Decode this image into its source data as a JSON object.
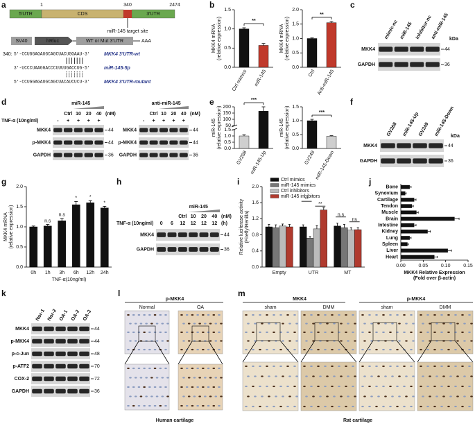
{
  "chart_data": [
    {
      "type": "bar",
      "panel": "b",
      "y_label": [
        "MKK4 mRNA",
        "(relative expression)"
      ],
      "categories": [
        "Ctrl mimics",
        "miR-145"
      ],
      "values": [
        1.0,
        0.57
      ],
      "errors": [
        0.03,
        0.05
      ],
      "colors": [
        "#111111",
        "#c0392b"
      ],
      "ylim": [
        0,
        1.5
      ],
      "yticks": [
        {
          "value": 0,
          "label": "0.0"
        },
        {
          "value": 0.5,
          "label": "0.5"
        },
        {
          "value": 1,
          "label": "1.0"
        },
        {
          "value": 1.5,
          "label": "1.5"
        }
      ],
      "significance": "**"
    },
    {
      "type": "bar",
      "y_label": [
        "MKK4 mRNA",
        "(relative expression)"
      ],
      "categories": [
        "Ctrl",
        "Anti-miR-145"
      ],
      "values": [
        1.0,
        1.55
      ],
      "errors": [
        0.02,
        0.04
      ],
      "colors": [
        "#111111",
        "#c0392b"
      ],
      "ylim": [
        0,
        2
      ],
      "yticks": [
        {
          "value": 0,
          "label": "0.0"
        },
        {
          "value": 0.5,
          "label": "0.5"
        },
        {
          "value": 1,
          "label": "1.0"
        },
        {
          "value": 1.5,
          "label": "1.5"
        },
        {
          "value": 2,
          "label": "2.0"
        }
      ],
      "significance": "**"
    },
    {
      "type": "bar",
      "panel": "e",
      "y_label": [
        "miR-145",
        "(relative expression)"
      ],
      "categories": [
        "GV268",
        "miR-145-Up"
      ],
      "values": [
        1.0,
        165
      ],
      "errors": [
        0.1,
        35
      ],
      "colors": [
        "#cfcfcf",
        "#111111"
      ],
      "ylim": [
        0,
        200
      ],
      "ybreak": [
        1.5,
        50
      ],
      "yticks": [
        {
          "value": 0,
          "label": "0.0"
        },
        {
          "value": 0.5,
          "label": "0.5"
        },
        {
          "value": 1,
          "label": "1.0"
        },
        {
          "value": 1.5,
          "label": "1.5"
        },
        50,
        100,
        150,
        200
      ],
      "significance": "***"
    },
    {
      "type": "bar",
      "y_label": [
        "miR-145",
        "(relative expression)"
      ],
      "categories": [
        "GV249",
        "miR-145-Down"
      ],
      "values": [
        1.0,
        0.44
      ],
      "errors": [
        0.05,
        0.02
      ],
      "colors": [
        "#111111",
        "#cfcfcf"
      ],
      "ylim": [
        0,
        1.5
      ],
      "yticks": [
        {
          "value": 0,
          "label": "0.0"
        },
        {
          "value": 0.5,
          "label": "0.5"
        },
        {
          "value": 1,
          "label": "1.0"
        },
        {
          "value": 1.5,
          "label": "1.5"
        }
      ],
      "significance": "***"
    },
    {
      "type": "bar",
      "panel": "g",
      "y_label": [
        "MKK4 mRNA",
        "(relative expression)"
      ],
      "x_label": "TNF-α(10ng/ml)",
      "categories": [
        "0h",
        "1h",
        "3h",
        "6h",
        "12h",
        "24h"
      ],
      "values": [
        1.0,
        1.02,
        1.15,
        1.55,
        1.6,
        1.47
      ],
      "errors": [
        0.02,
        0.04,
        0.06,
        0.08,
        0.05,
        0.04
      ],
      "color": "#111111",
      "annotations": [
        null,
        "n.s",
        "n.s",
        "*",
        "*",
        "*"
      ],
      "ylim": [
        0,
        2
      ],
      "yticks": [
        {
          "value": 0,
          "label": "0.0"
        },
        {
          "value": 0.5,
          "label": "0.5"
        },
        {
          "value": 1,
          "label": "1.0"
        },
        {
          "value": 1.5,
          "label": "1.5"
        },
        {
          "value": 2,
          "label": "2.0"
        }
      ]
    },
    {
      "type": "bar",
      "panel": "i",
      "y_label": [
        "Relative luciferase activity",
        "(Firefly/Renilla)"
      ],
      "categories": [
        "Empty",
        "UTR",
        "MT"
      ],
      "series": [
        {
          "name": "Ctrl mimics",
          "color": "#111111",
          "values": [
            1.0,
            1.0,
            1.02
          ],
          "errors": [
            0.06,
            0.05,
            0.07
          ]
        },
        {
          "name": "miR-145 mimics",
          "color": "#777777",
          "values": [
            0.98,
            0.72,
            0.98
          ],
          "errors": [
            0.07,
            0.04,
            0.08
          ]
        },
        {
          "name": "Ctrl inhibitors",
          "color": "#bbbbbb",
          "values": [
            1.02,
            0.95,
            0.92
          ],
          "errors": [
            0.05,
            0.08,
            0.06
          ]
        },
        {
          "name": "miR-145 inhibitors",
          "color": "#b03a2e",
          "values": [
            1.0,
            1.42,
            0.93
          ],
          "errors": [
            0.06,
            0.06,
            0.05
          ]
        }
      ],
      "annotations": [
        null,
        [
          "**",
          "**"
        ],
        [
          "n.s",
          "ns"
        ]
      ],
      "legend": "top",
      "ylim": [
        0,
        2
      ],
      "yticks": [
        {
          "value": 0,
          "label": "0.0"
        },
        0.4,
        0.8,
        1.2,
        1.6,
        {
          "value": 2,
          "label": "2.0"
        }
      ]
    },
    {
      "type": "barh",
      "panel": "j",
      "x_label": [
        "MKK4 Relative Expression",
        "(Fold over β-actin)"
      ],
      "categories": [
        "Bone",
        "Synovium",
        "Cartilage",
        "Tendon",
        "Muscle",
        "Brain",
        "Intestine",
        "Kidney",
        "Lung",
        "Spleen",
        "Liver",
        "Heart"
      ],
      "values": [
        0.02,
        0.01,
        0.03,
        0.025,
        0.035,
        0.12,
        0.03,
        0.06,
        0.02,
        0.015,
        0.105,
        0.075
      ],
      "errors": [
        0.003,
        0.002,
        0.004,
        0.003,
        0.004,
        0.01,
        0.004,
        0.006,
        0.003,
        0.002,
        0.008,
        0.006
      ],
      "color": "#111111",
      "xlim": [
        0,
        0.15
      ],
      "xticks": [
        {
          "value": 0,
          "label": "0.00"
        },
        0.05,
        {
          "value": 0.1,
          "label": "0.10"
        },
        0.15
      ]
    }
  ],
  "figure": {
    "a": {
      "label": "a",
      "gene": [
        "5'UTR",
        "CDS",
        "3'UTR"
      ],
      "positions": [
        "1",
        "340",
        "2474"
      ],
      "site": "miR-145 target site",
      "construct": [
        "SV40",
        "hRluc",
        "WT or Mut 3'UTR",
        "AAA"
      ],
      "alignment": [
        {
          "prefix": "340:",
          "seq": "5'-CCUGGAGAUGCAGCUACUGGAAU-3'",
          "name": "MKK4 3'UTR-wt"
        },
        {
          "seq": "3'-UCCCUAAGGACCCUUUUGACCUG-5'",
          "name": "miR-145-5p"
        },
        {
          "seq": "5'-CCUGGAGAUGCAGCUACAUCUCU-3'",
          "name": "MKK4 3'UTR-mutant"
        }
      ]
    },
    "c": {
      "label": "c",
      "lanes": [
        "mimic-nc",
        "miR-145",
        "inhibitor-nc",
        "anti-miR-145"
      ],
      "kda": "kDa",
      "rows": [
        {
          "name": "MKK4",
          "marker": "44"
        },
        {
          "name": "GAPDH",
          "marker": "36"
        }
      ]
    },
    "d": {
      "label": "d",
      "treatment": "TNF-α (10ng/ml)",
      "blots": [
        {
          "group": "miR-145",
          "lanes": [
            "Ctrl",
            "10",
            "20",
            "40"
          ],
          "unit": "(nM)",
          "signs": [
            "-",
            "+",
            "+",
            "+",
            "+"
          ],
          "rows": [
            {
              "name": "MKK4",
              "marker": "44"
            },
            {
              "name": "p-MKK4",
              "marker": "44"
            },
            {
              "name": "GAPDH",
              "marker": "36"
            }
          ]
        },
        {
          "group": "anti-miR-145",
          "lanes": [
            "Ctrl",
            "10",
            "20",
            "40"
          ],
          "unit": "(nM)",
          "signs": [
            "-",
            "+",
            "+",
            "+",
            "+"
          ],
          "rows": [
            {
              "name": "MKK4",
              "marker": "44"
            },
            {
              "name": "p-MKK4",
              "marker": "44"
            },
            {
              "name": "GAPDH",
              "marker": "36"
            }
          ]
        }
      ]
    },
    "f": {
      "label": "f",
      "lanes": [
        "GV268",
        "miR-145-Up",
        "GV249",
        "miR-145-Down"
      ],
      "kda": "kDa",
      "rows": [
        {
          "name": "MKK4",
          "marker": "44"
        },
        {
          "name": "GAPDH",
          "marker": "36"
        }
      ]
    },
    "h": {
      "label": "h",
      "group": "miR-145",
      "treatment": "TNF-α (10ng/ml)",
      "lanes": [
        "Ctrl",
        "10",
        "20",
        "40"
      ],
      "unit": "(nM)",
      "times": [
        "0",
        "6",
        "12",
        "12",
        "12",
        "12"
      ],
      "time_unit": "(h)",
      "rows": [
        {
          "name": "MKK4",
          "marker": "44"
        },
        {
          "name": "GAPDH",
          "marker": "36"
        }
      ]
    },
    "k": {
      "label": "k",
      "lanes": [
        "Nor-1",
        "Nor-2",
        "OA-1",
        "OA-2",
        "OA-3"
      ],
      "rows": [
        {
          "name": "MKK4",
          "marker": "44"
        },
        {
          "name": "p-MKK4",
          "marker": "44"
        },
        {
          "name": "p-c-Jun",
          "marker": "48"
        },
        {
          "name": "p-ATF2",
          "marker": "70"
        },
        {
          "name": "COX-2",
          "marker": "72"
        },
        {
          "name": "GAPDH",
          "marker": "36"
        }
      ]
    },
    "l": {
      "label": "l",
      "stain": "p-MKK4",
      "groups": [
        "Normal",
        "OA"
      ],
      "caption": "Human cartilage"
    },
    "m": {
      "label": "m",
      "stains": [
        "MKK4",
        "p-MKK4"
      ],
      "groups": [
        "sham",
        "DMM",
        "sham",
        "DMM"
      ],
      "caption": "Rat cartilage"
    }
  }
}
